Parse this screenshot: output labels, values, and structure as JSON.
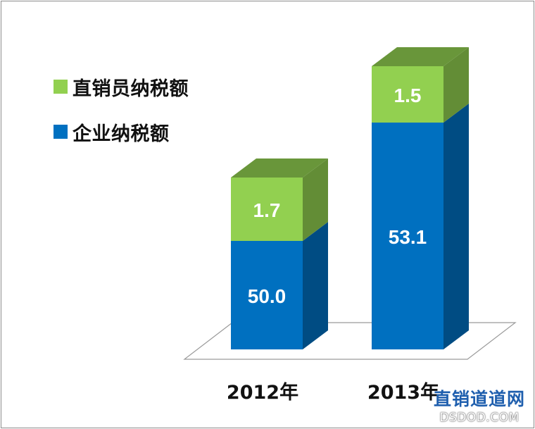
{
  "chart_data": {
    "type": "bar",
    "stacked": true,
    "categories": [
      "2012年",
      "2013年"
    ],
    "series": [
      {
        "name": "企业纳税额",
        "values": [
          50.0,
          53.1
        ],
        "color": "#0070c0"
      },
      {
        "name": "直销员纳税额",
        "values": [
          1.7,
          1.5
        ],
        "color": "#92d050"
      }
    ],
    "legend_position": "left",
    "grid": false
  },
  "legend": {
    "items": [
      {
        "label": "直销员纳税额",
        "color": "#92d050"
      },
      {
        "label": "企业纳税额",
        "color": "#0070c0"
      }
    ]
  },
  "watermark": {
    "cn": "直销道道网",
    "en": "DSDOD.COM"
  }
}
